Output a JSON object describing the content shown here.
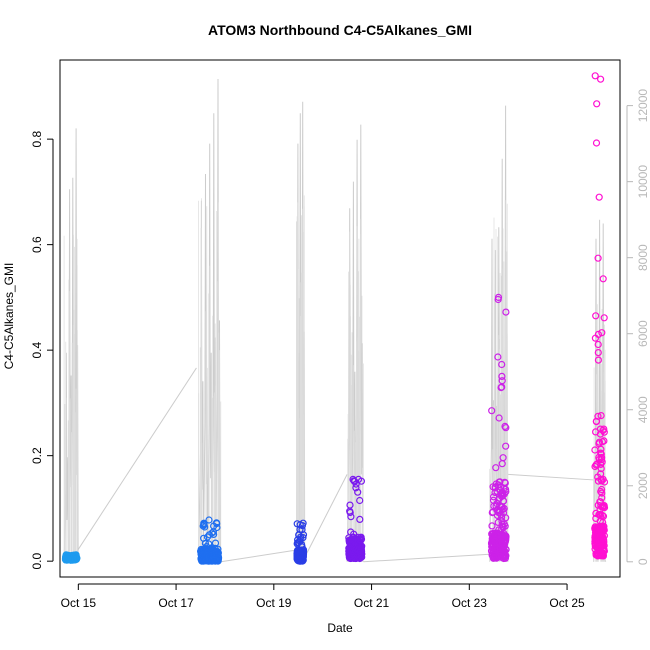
{
  "chart_data": {
    "type": "scatter",
    "title": "ATOM3 Northbound C4-C5Alkanes_GMI",
    "xlabel": "Date",
    "ylabel": "C4-C5Alkanes_GMI",
    "x_axis": {
      "type": "date",
      "range": [
        "2016-10-14 15:00",
        "2016-10-26 02:00"
      ],
      "ticks": [
        "Oct 15",
        "Oct 17",
        "Oct 19",
        "Oct 21",
        "Oct 23",
        "Oct 25"
      ],
      "tick_dates": [
        "2016-10-15",
        "2016-10-17",
        "2016-10-19",
        "2016-10-21",
        "2016-10-23",
        "2016-10-25"
      ]
    },
    "y_axis": {
      "range": [
        -0.03,
        0.95
      ],
      "ticks": [
        "0.0",
        "0.2",
        "0.4",
        "0.6",
        "0.8"
      ],
      "tick_values": [
        0,
        0.2,
        0.4,
        0.6,
        0.8
      ]
    },
    "y2_axis": {
      "label": "",
      "range": [
        -400,
        13200
      ],
      "ticks": [
        "0",
        "2000",
        "4000",
        "6000",
        "8000",
        "10000",
        "12000"
      ],
      "tick_values": [
        0,
        2000,
        4000,
        6000,
        8000,
        10000,
        12000
      ],
      "color": "#b8b8b8"
    },
    "grid": false,
    "legend": "none",
    "series": [
      {
        "axis": "secondary",
        "style": "line",
        "color": "#cccccc",
        "description_kind": "altitude trace",
        "flights": [
          {
            "start": "2016-10-14 17:00",
            "end": "2016-10-15 00:00",
            "peaks": [
              5500,
              9800,
              10100,
              11400
            ]
          },
          {
            "start": "2016-10-17 11:00",
            "end": "2016-10-17 22:00",
            "peaks": [
              9500,
              10200,
              11000,
              11800,
              12700
            ]
          },
          {
            "start": "2016-10-19 11:00",
            "end": "2016-10-19 15:00",
            "peaks": [
              11000,
              11800,
              12100
            ]
          },
          {
            "start": "2016-10-20 12:00",
            "end": "2016-10-20 20:00",
            "peaks": [
              9300,
              10000,
              11100,
              11500
            ]
          },
          {
            "start": "2016-10-23 10:00",
            "end": "2016-10-23 19:00",
            "peaks": [
              8500,
              8200,
              8800,
              10600,
              12000
            ]
          },
          {
            "start": "2016-10-25 13:00",
            "end": "2016-10-25 19:00",
            "peaks": [
              8500,
              9000,
              8900
            ]
          }
        ],
        "connectors": [
          {
            "from": [
              "2016-10-14 20:00",
              0
            ],
            "to": [
              "2016-10-17 10:00",
              5100
            ]
          },
          {
            "from": [
              "2016-10-17 22:00",
              0
            ],
            "to": [
              "2016-10-19 10:00",
              300
            ]
          },
          {
            "from": [
              "2016-10-19 15:00",
              100
            ],
            "to": [
              "2016-10-20 12:00",
              2300
            ]
          },
          {
            "from": [
              "2016-10-20 20:00",
              0
            ],
            "to": [
              "2016-10-23 10:00",
              200
            ]
          },
          {
            "from": [
              "2016-10-23 19:00",
              2300
            ],
            "to": [
              "2016-10-25 14:00",
              2150
            ]
          }
        ]
      },
      {
        "axis": "primary",
        "style": "points",
        "marker": "open-circle",
        "flights": [
          {
            "start": "2016-10-14 17:00",
            "end": "2016-10-15 00:00",
            "color": "#1e9bef",
            "min": 0.002,
            "max": 0.012,
            "typical": 0.005
          },
          {
            "start": "2016-10-17 11:00",
            "end": "2016-10-17 22:00",
            "color": "#1f6ff0",
            "min": 0.0,
            "max": 0.078,
            "typical": 0.006
          },
          {
            "start": "2016-10-19 11:00",
            "end": "2016-10-19 15:00",
            "color": "#2a3ee6",
            "min": 0.0,
            "max": 0.072,
            "typical": 0.012
          },
          {
            "start": "2016-10-20 12:00",
            "end": "2016-10-20 20:00",
            "color": "#7a1aee",
            "min": 0.005,
            "max": 0.155,
            "typical": 0.02
          },
          {
            "start": "2016-10-23 10:00",
            "end": "2016-10-23 19:00",
            "color": "#cc22e8",
            "min": 0.005,
            "max": 0.5,
            "typical": 0.04
          },
          {
            "start": "2016-10-25 13:00",
            "end": "2016-10-25 19:00",
            "color": "#ff10d2",
            "min": 0.01,
            "max": 0.92,
            "typical": 0.05
          }
        ]
      }
    ]
  }
}
